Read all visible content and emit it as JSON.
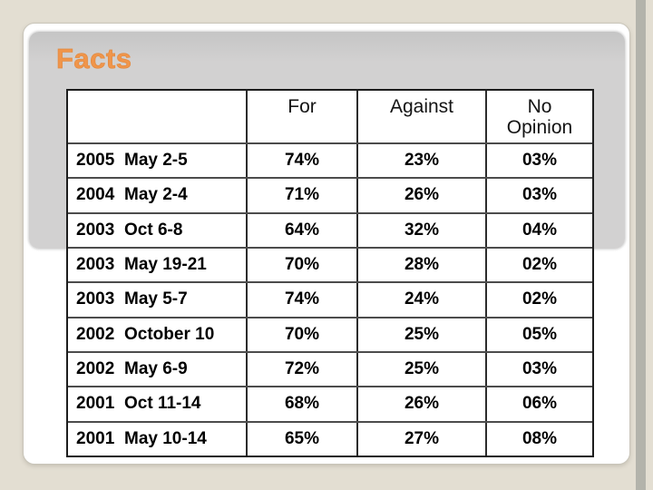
{
  "page": {
    "background_color": "#e3ded2",
    "edge_strip_color": "#b3b3ab",
    "slide_color": "#ffffff",
    "title_plate_color": "#d2d1d1",
    "accent_color": "#f0954a"
  },
  "slide": {
    "title": "Facts",
    "table": {
      "headers": [
        "",
        "For",
        "Against",
        "No Opinion"
      ],
      "rows": [
        {
          "year": "2005",
          "date": "May 2-5",
          "for": "74%",
          "against": "23%",
          "no_opinion": "03%"
        },
        {
          "year": "2004",
          "date": "May 2-4",
          "for": "71%",
          "against": "26%",
          "no_opinion": "03%"
        },
        {
          "year": "2003",
          "date": "Oct 6-8",
          "for": "64%",
          "against": "32%",
          "no_opinion": "04%"
        },
        {
          "year": "2003",
          "date": "May 19-21",
          "for": "70%",
          "against": "28%",
          "no_opinion": "02%"
        },
        {
          "year": "2003",
          "date": "May 5-7",
          "for": "74%",
          "against": "24%",
          "no_opinion": "02%"
        },
        {
          "year": "2002",
          "date": "October 10",
          "for": "70%",
          "against": "25%",
          "no_opinion": "05%"
        },
        {
          "year": "2002",
          "date": "May 6-9",
          "for": "72%",
          "against": "25%",
          "no_opinion": "03%"
        },
        {
          "year": "2001",
          "date": "Oct 11-14",
          "for": "68%",
          "against": "26%",
          "no_opinion": "06%"
        },
        {
          "year": "2001",
          "date": "May 10-14",
          "for": "65%",
          "against": "27%",
          "no_opinion": "08%"
        }
      ]
    }
  }
}
